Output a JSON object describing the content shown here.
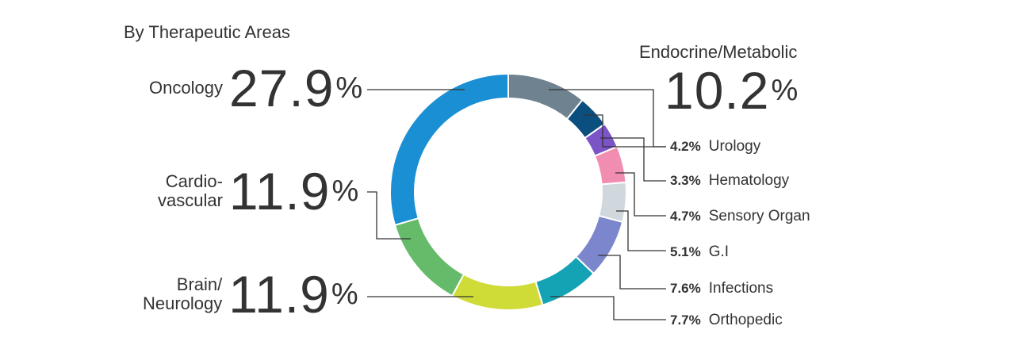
{
  "chart_data": {
    "type": "pie",
    "title": "By Therapeutic Areas",
    "categories": [
      "Endocrine/Metabolic",
      "Urology",
      "Hematology",
      "Sensory Organ",
      "G.I",
      "Infections",
      "Orthopedic",
      "Brain/ Neurology",
      "Cardio- vascular",
      "Oncology"
    ],
    "values": [
      10.2,
      4.2,
      3.3,
      4.7,
      5.1,
      7.6,
      7.7,
      11.9,
      11.9,
      27.9
    ],
    "colors": [
      "#6f8290",
      "#0a4f7e",
      "#7b55c7",
      "#f28db2",
      "#d0d8dd",
      "#7b86cd",
      "#14a3b4",
      "#cfdb36",
      "#66bb6a",
      "#1a8fd4"
    ],
    "donut": true
  },
  "labels": {
    "oncology": {
      "name": "Oncology",
      "num": "27.9",
      "pct": "%"
    },
    "cardio": {
      "name_line1": "Cardio-",
      "name_line2": "vascular",
      "num": "11.9",
      "pct": "%"
    },
    "brain": {
      "name_line1": "Brain/",
      "name_line2": "Neurology",
      "num": "11.9",
      "pct": "%"
    },
    "endocrine": {
      "name": "Endocrine/Metabolic",
      "num": "10.2",
      "pct": "%"
    },
    "urology": {
      "value": "4.2%",
      "name": "Urology"
    },
    "hematology": {
      "value": "3.3%",
      "name": "Hematology"
    },
    "sensory": {
      "value": "4.7%",
      "name": "Sensory Organ"
    },
    "gi": {
      "value": "5.1%",
      "name": "G.I"
    },
    "infections": {
      "value": "7.6%",
      "name": "Infections"
    },
    "orthopedic": {
      "value": "7.7%",
      "name": "Orthopedic"
    }
  },
  "colors": {
    "text": "#333333",
    "leader": "#333333"
  }
}
